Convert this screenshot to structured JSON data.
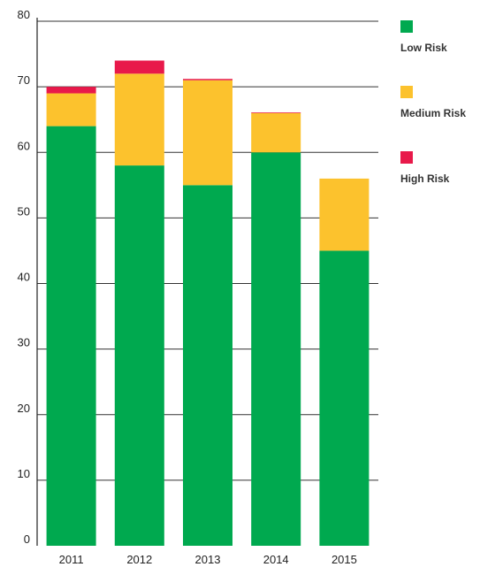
{
  "chart_data": {
    "type": "bar",
    "stacked": true,
    "title": "",
    "xlabel": "",
    "ylabel": "",
    "categories": [
      "2011",
      "2012",
      "2013",
      "2014",
      "2015"
    ],
    "series": [
      {
        "name": "Low Risk",
        "color": "#00a94f",
        "values": [
          64,
          58,
          55,
          60,
          45
        ]
      },
      {
        "name": "Medium Risk",
        "color": "#fcc22d",
        "values": [
          5,
          14,
          16,
          6,
          11
        ]
      },
      {
        "name": "High Risk",
        "color": "#e8194a",
        "values": [
          1,
          2,
          0.2,
          0.1,
          0
        ]
      }
    ],
    "ylim": [
      0,
      80
    ],
    "yticks": [
      "0",
      "10",
      "20",
      "30",
      "40",
      "50",
      "60",
      "70",
      "80"
    ],
    "grid": true,
    "legend_position": "top-right"
  }
}
